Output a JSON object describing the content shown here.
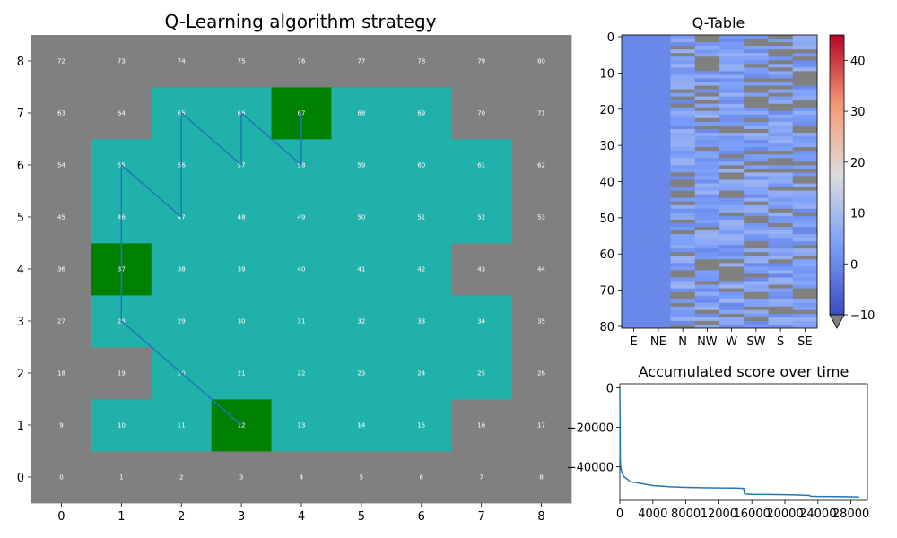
{
  "chart_data": [
    {
      "type": "heatmap",
      "title": "Q-Learning algorithm strategy",
      "xlabel": "",
      "ylabel": "",
      "x_ticks": [
        "0",
        "1",
        "2",
        "3",
        "4",
        "5",
        "6",
        "7",
        "8"
      ],
      "y_ticks": [
        "0",
        "1",
        "2",
        "3",
        "4",
        "5",
        "6",
        "7",
        "8"
      ],
      "grid_size": 9,
      "colors": {
        "blocked": "#808080",
        "free": "#20b2aa",
        "special": "#008000",
        "path": "#1f77b4",
        "label": "#ffffff"
      },
      "free_cells": [
        10,
        11,
        12,
        13,
        14,
        15,
        20,
        21,
        22,
        23,
        24,
        25,
        28,
        29,
        30,
        31,
        32,
        33,
        34,
        37,
        38,
        39,
        40,
        41,
        42,
        46,
        47,
        48,
        49,
        50,
        51,
        52,
        55,
        56,
        57,
        58,
        59,
        60,
        61,
        65,
        66,
        67,
        68,
        69
      ],
      "special_cells": [
        12,
        37,
        67
      ],
      "path": [
        12,
        28,
        37,
        55,
        47,
        65,
        57,
        66,
        58,
        67
      ]
    },
    {
      "type": "heatmap",
      "title": "Q-Table",
      "columns": [
        "E",
        "NE",
        "N",
        "NW",
        "W",
        "SW",
        "S",
        "SE"
      ],
      "y_ticks": [
        "0",
        "10",
        "20",
        "30",
        "40",
        "50",
        "60",
        "70",
        "80"
      ],
      "rows": 81,
      "colorbar": {
        "min": -10,
        "max": 45,
        "ticks": [
          "-10",
          "0",
          "10",
          "20",
          "30",
          "40"
        ],
        "cmap": "coolwarm",
        "extend": "min"
      },
      "under_color": "#808080",
      "note_values": "columns E and NE ≈ 0 for all states; unavailable actions masked (below -10)"
    },
    {
      "type": "line",
      "title": "Accumulated score over time",
      "xlabel": "",
      "ylabel": "",
      "xlim": [
        0,
        30000
      ],
      "ylim": [
        -57000,
        2000
      ],
      "x_ticks": [
        "0",
        "4000",
        "8000",
        "12000",
        "16000",
        "20000",
        "24000",
        "28000"
      ],
      "y_ticks": [
        "0",
        "-20000",
        "-40000"
      ],
      "x": [
        0,
        50,
        100,
        200,
        300,
        500,
        800,
        1000,
        1200,
        2000,
        3000,
        4000,
        6000,
        8000,
        10000,
        12000,
        14000,
        15000,
        15100,
        15200,
        16000,
        18000,
        20000,
        22000,
        23000,
        23100,
        24000,
        26000,
        28000,
        29000
      ],
      "y": [
        0,
        -36000,
        -40000,
        -42000,
        -43500,
        -45000,
        -46000,
        -46500,
        -47500,
        -48000,
        -48800,
        -49500,
        -50100,
        -50400,
        -50600,
        -50700,
        -50800,
        -50900,
        -53500,
        -53800,
        -53900,
        -54000,
        -54100,
        -54300,
        -54500,
        -54900,
        -55000,
        -55100,
        -55200,
        -55300
      ],
      "color": "#1f77b4"
    }
  ]
}
